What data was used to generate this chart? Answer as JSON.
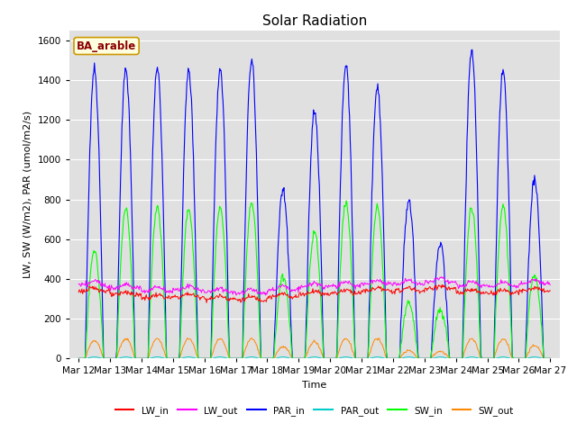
{
  "title": "Solar Radiation",
  "ylabel": "LW, SW (W/m2), PAR (umol/m2/s)",
  "xlabel": "Time",
  "site_label": "BA_arable",
  "ylim": [
    0,
    1650
  ],
  "colors": {
    "LW_in": "#ff0000",
    "LW_out": "#ff00ff",
    "PAR_in": "#0000ff",
    "PAR_out": "#00cccc",
    "SW_in": "#00ff00",
    "SW_out": "#ff8800"
  },
  "background_color": "#e0e0e0",
  "title_fontsize": 11,
  "label_fontsize": 8,
  "tick_fontsize": 7.5,
  "day_peaks_PAR": [
    1450,
    1450,
    1470,
    1450,
    1460,
    1500,
    850,
    1240,
    1480,
    1370,
    800,
    580,
    1550,
    1450,
    900
  ],
  "day_peaks_SW": [
    540,
    750,
    760,
    750,
    760,
    780,
    420,
    630,
    780,
    760,
    280,
    250,
    760,
    760,
    420
  ],
  "day_peaks_SWout": [
    90,
    100,
    100,
    100,
    100,
    100,
    60,
    85,
    100,
    100,
    40,
    35,
    100,
    100,
    65
  ],
  "lw_in_base": [
    340,
    320,
    305,
    310,
    300,
    295,
    310,
    325,
    330,
    340,
    340,
    350,
    330,
    330,
    340,
    340
  ],
  "lw_out_base": [
    370,
    355,
    340,
    345,
    335,
    330,
    345,
    360,
    365,
    375,
    375,
    385,
    365,
    365,
    375,
    375
  ]
}
